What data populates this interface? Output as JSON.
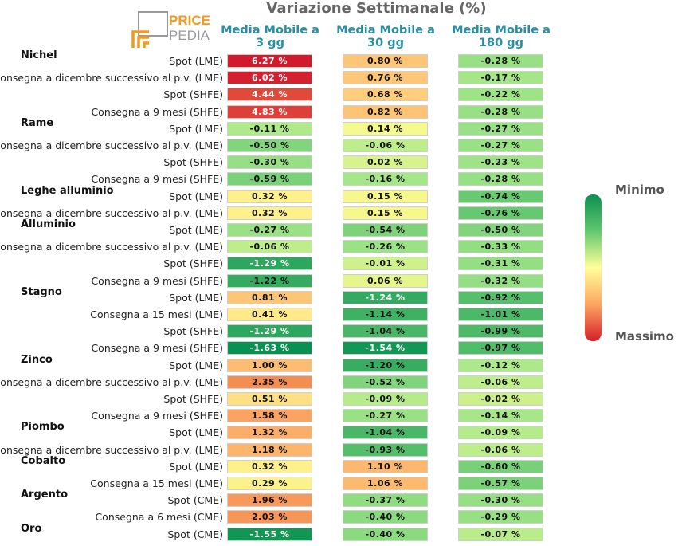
{
  "title": "Variazione Settimanale (%)",
  "logo": {
    "word1": "PRICE",
    "word2": "PEDIA"
  },
  "legend": {
    "min_label": "Minimo",
    "max_label": "Massimo"
  },
  "chart_data": {
    "type": "heatmap",
    "title": "Variazione Settimanale (%)",
    "columns": [
      {
        "line1": "Media Mobile a",
        "line2": "3 gg"
      },
      {
        "line1": "Media Mobile a",
        "line2": "30 gg"
      },
      {
        "line1": "Media Mobile a",
        "line2": "180 gg"
      }
    ],
    "groups": [
      {
        "name": "Nichel",
        "rows": [
          {
            "label": "Spot (LME)",
            "values": [
              "6.27 %",
              "0.80 %",
              "-0.28 %"
            ]
          },
          {
            "label": "Consegna a dicembre successivo al p.v. (LME)",
            "values": [
              "6.02 %",
              "0.76 %",
              "-0.17 %"
            ]
          },
          {
            "label": "Spot (SHFE)",
            "values": [
              "4.44 %",
              "0.68 %",
              "-0.22 %"
            ]
          },
          {
            "label": "Consegna a 9 mesi (SHFE)",
            "values": [
              "4.83 %",
              "0.82 %",
              "-0.28 %"
            ]
          }
        ]
      },
      {
        "name": "Rame",
        "rows": [
          {
            "label": "Spot (LME)",
            "values": [
              "-0.11 %",
              "0.14 %",
              "-0.27 %"
            ]
          },
          {
            "label": "Consegna a dicembre successivo al p.v. (LME)",
            "values": [
              "-0.50 %",
              "-0.06 %",
              "-0.27 %"
            ]
          },
          {
            "label": "Spot (SHFE)",
            "values": [
              "-0.30 %",
              "0.02 %",
              "-0.23 %"
            ]
          },
          {
            "label": "Consegna a 9 mesi (SHFE)",
            "values": [
              "-0.59 %",
              "-0.16 %",
              "-0.28 %"
            ]
          }
        ]
      },
      {
        "name": "Leghe alluminio",
        "rows": [
          {
            "label": "Spot (LME)",
            "values": [
              "0.32 %",
              "0.15 %",
              "-0.74 %"
            ]
          },
          {
            "label": "Consegna a dicembre successivo al p.v. (LME)",
            "values": [
              "0.32 %",
              "0.15 %",
              "-0.76 %"
            ]
          }
        ]
      },
      {
        "name": "Alluminio",
        "rows": [
          {
            "label": "Spot (LME)",
            "values": [
              "-0.27 %",
              "-0.54 %",
              "-0.50 %"
            ]
          },
          {
            "label": "Consegna a dicembre successivo al p.v. (LME)",
            "values": [
              "-0.06 %",
              "-0.26 %",
              "-0.33 %"
            ]
          },
          {
            "label": "Spot (SHFE)",
            "values": [
              "-1.29 %",
              "-0.01 %",
              "-0.31 %"
            ]
          },
          {
            "label": "Consegna a 9 mesi (SHFE)",
            "values": [
              "-1.22 %",
              "0.06 %",
              "-0.32 %"
            ]
          }
        ]
      },
      {
        "name": "Stagno",
        "rows": [
          {
            "label": "Spot (LME)",
            "values": [
              "0.81 %",
              "-1.24 %",
              "-0.92 %"
            ]
          },
          {
            "label": "Consegna a 15 mesi (LME)",
            "values": [
              "0.41 %",
              "-1.14 %",
              "-1.01 %"
            ]
          },
          {
            "label": "Spot (SHFE)",
            "values": [
              "-1.29 %",
              "-1.04 %",
              "-0.99 %"
            ]
          },
          {
            "label": "Consegna a 9 mesi (SHFE)",
            "values": [
              "-1.63 %",
              "-1.54 %",
              "-0.97 %"
            ]
          }
        ]
      },
      {
        "name": "Zinco",
        "rows": [
          {
            "label": "Spot (LME)",
            "values": [
              "1.00 %",
              "-1.20 %",
              "-0.12 %"
            ]
          },
          {
            "label": "Consegna a dicembre successivo al p.v. (LME)",
            "values": [
              "2.35 %",
              "-0.52 %",
              "-0.06 %"
            ]
          },
          {
            "label": "Spot (SHFE)",
            "values": [
              "0.51 %",
              "-0.09 %",
              "-0.02 %"
            ]
          },
          {
            "label": "Consegna a 9 mesi (SHFE)",
            "values": [
              "1.58 %",
              "-0.27 %",
              "-0.14 %"
            ]
          }
        ]
      },
      {
        "name": "Piombo",
        "rows": [
          {
            "label": "Spot (LME)",
            "values": [
              "1.32 %",
              "-1.04 %",
              "-0.09 %"
            ]
          },
          {
            "label": "Consegna a dicembre successivo al p.v. (LME)",
            "values": [
              "1.18 %",
              "-0.93 %",
              "-0.06 %"
            ]
          }
        ]
      },
      {
        "name": "Cobalto",
        "rows": [
          {
            "label": "Spot (LME)",
            "values": [
              "0.32 %",
              "1.10 %",
              "-0.60 %"
            ]
          },
          {
            "label": "Consegna a 15 mesi (LME)",
            "values": [
              "0.29 %",
              "1.06 %",
              "-0.57 %"
            ]
          }
        ]
      },
      {
        "name": "Argento",
        "rows": [
          {
            "label": "Spot (CME)",
            "values": [
              "1.96 %",
              "-0.37 %",
              "-0.30 %"
            ]
          },
          {
            "label": "Consegna a 6 mesi (CME)",
            "values": [
              "2.03 %",
              "-0.40 %",
              "-0.29 %"
            ]
          }
        ]
      },
      {
        "name": "Oro",
        "rows": [
          {
            "label": "Spot (CME)",
            "values": [
              "-1.55 %",
              "-0.40 %",
              "-0.07 %"
            ]
          }
        ]
      }
    ]
  }
}
